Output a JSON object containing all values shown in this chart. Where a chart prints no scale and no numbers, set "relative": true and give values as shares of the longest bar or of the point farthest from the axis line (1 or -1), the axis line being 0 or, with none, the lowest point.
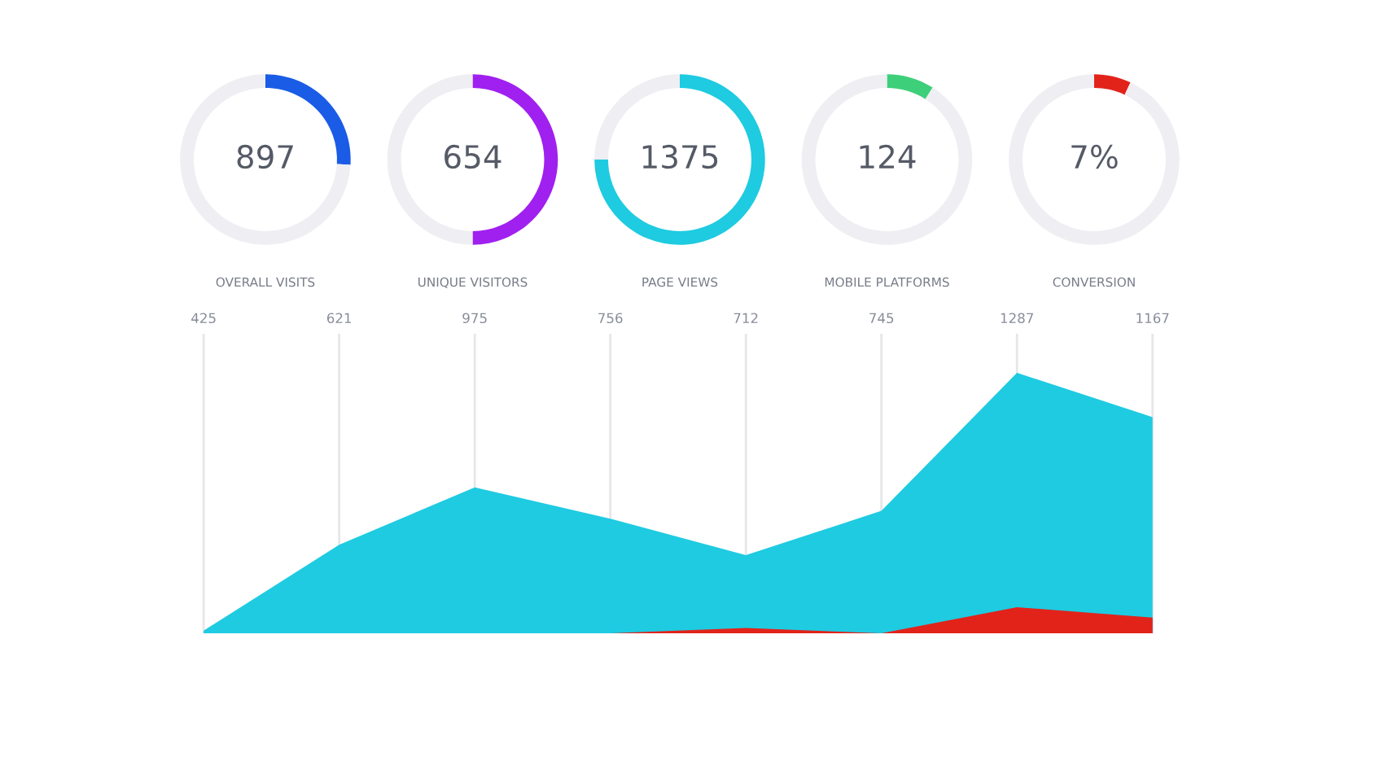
{
  "chart_data": [
    {
      "type": "donut",
      "categories": [
        null,
        null
      ],
      "values": [
        26,
        74
      ],
      "colors": [
        "#1a5ce6",
        "#eeeef3"
      ],
      "annotations": [
        "897"
      ],
      "xlabel": "OVERALL VISITS"
    },
    {
      "type": "donut",
      "categories": [
        null,
        null
      ],
      "values": [
        50,
        50
      ],
      "colors": [
        "#a020f0",
        "#eeeef3"
      ],
      "annotations": [
        "654"
      ],
      "xlabel": "UNIQUE VISITORS"
    },
    {
      "type": "donut",
      "categories": [
        null,
        null
      ],
      "values": [
        75,
        25
      ],
      "colors": [
        "#1ecbe1",
        "#eeeef3"
      ],
      "annotations": [
        "1375"
      ],
      "xlabel": "PAGE VIEWS"
    },
    {
      "type": "donut",
      "categories": [
        null,
        null
      ],
      "values": [
        9,
        91
      ],
      "colors": [
        "#3ecf7a",
        "#eeeef3"
      ],
      "annotations": [
        "124"
      ],
      "xlabel": "MOBILE PLATFORMS"
    },
    {
      "type": "donut",
      "categories": [
        null,
        null
      ],
      "values": [
        7,
        93
      ],
      "colors": [
        "#e2231a",
        "#eeeef3"
      ],
      "annotations": [
        "7%"
      ],
      "xlabel": "CONVERSION"
    },
    {
      "type": "area",
      "relative": true,
      "grid": "x",
      "legend": false,
      "tick_labels": "x",
      "categories": [
        "425",
        "621",
        "975",
        "756",
        "712",
        "745",
        "1287",
        "1167"
      ],
      "series": [
        {
          "color": "#1ecbe1",
          "values": [
            0.01,
            0.34,
            0.56,
            0.44,
            0.3,
            0.47,
            1,
            0.83
          ]
        },
        {
          "color": "#e2231a",
          "values": [
            0,
            0,
            0,
            0,
            0.02,
            0,
            0.1,
            0.06
          ]
        }
      ]
    }
  ]
}
